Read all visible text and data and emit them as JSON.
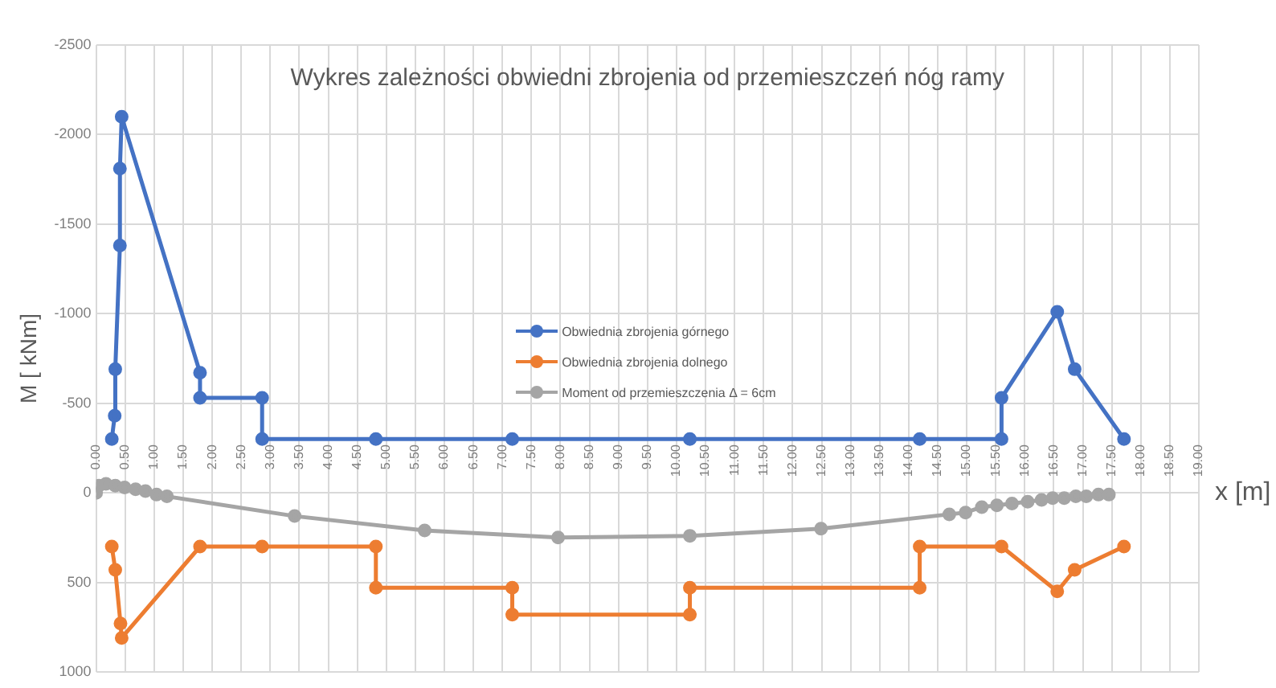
{
  "chart_data": {
    "type": "line",
    "title": "Wykres zależności obwiedni zbrojenia od przemieszczeń nóg ramy",
    "xlabel": "x [m]",
    "ylabel": "M [ kNm]",
    "series": [
      {
        "name": "Obwiednia zbrojenia górnego",
        "color": "#4472c4",
        "x": [
          0.27,
          0.32,
          0.33,
          0.41,
          0.41,
          0.44,
          1.79,
          1.79,
          2.86,
          2.86,
          4.82,
          7.17,
          10.23,
          14.19,
          15.6,
          15.6,
          16.56,
          16.86,
          17.71
        ],
        "values": [
          -300,
          -430,
          -690,
          -1380,
          -1810,
          -2100,
          -670,
          -530,
          -530,
          -300,
          -300,
          -300,
          -300,
          -300,
          -300,
          -530,
          -1010,
          -690,
          -300
        ]
      },
      {
        "name": "Obwiednia zbrojenia dolnego",
        "color": "#ed7d31",
        "x": [
          0.27,
          0.33,
          0.42,
          0.44,
          1.79,
          2.86,
          4.82,
          4.82,
          7.17,
          7.17,
          10.23,
          10.23,
          14.19,
          14.19,
          15.6,
          16.56,
          16.86,
          17.71
        ],
        "values": [
          300,
          430,
          730,
          810,
          300,
          300,
          300,
          530,
          530,
          680,
          680,
          530,
          530,
          300,
          300,
          550,
          430,
          300
        ]
      },
      {
        "name": "Moment od przemieszczenia Δ = 6cm",
        "color": "#a5a5a5",
        "x": [
          0,
          0.05,
          0.17,
          0.33,
          0.49,
          0.68,
          0.85,
          1.04,
          1.22,
          3.42,
          5.66,
          7.96,
          10.23,
          12.49,
          14.7,
          14.98,
          15.26,
          15.52,
          15.78,
          16.05,
          16.29,
          16.48,
          16.68,
          16.88,
          17.06,
          17.27,
          17.45
        ],
        "values": [
          0,
          -40,
          -50,
          -40,
          -30,
          -20,
          -10,
          10,
          20,
          130,
          210,
          250,
          240,
          200,
          120,
          110,
          80,
          70,
          60,
          50,
          40,
          30,
          30,
          20,
          20,
          10,
          10
        ]
      }
    ],
    "xlim": [
      0,
      19
    ],
    "xticks": [
      {
        "value": 0,
        "label": "0.00"
      },
      {
        "value": 0.5,
        "label": "0.50"
      },
      {
        "value": 1,
        "label": "1.00"
      },
      {
        "value": 1.5,
        "label": "1.50"
      },
      {
        "value": 2,
        "label": "2.00"
      },
      {
        "value": 2.5,
        "label": "2.50"
      },
      {
        "value": 3,
        "label": "3.00"
      },
      {
        "value": 3.5,
        "label": "3.50"
      },
      {
        "value": 4,
        "label": "4.00"
      },
      {
        "value": 4.5,
        "label": "4.50"
      },
      {
        "value": 5,
        "label": "5.00"
      },
      {
        "value": 5.5,
        "label": "5.50"
      },
      {
        "value": 6,
        "label": "6.00"
      },
      {
        "value": 6.5,
        "label": "6.50"
      },
      {
        "value": 7,
        "label": "7.00"
      },
      {
        "value": 7.5,
        "label": "7.50"
      },
      {
        "value": 8,
        "label": "8.00"
      },
      {
        "value": 8.5,
        "label": "8.50"
      },
      {
        "value": 9,
        "label": "9.00"
      },
      {
        "value": 9.5,
        "label": "9.50"
      },
      {
        "value": 10,
        "label": "10.00"
      },
      {
        "value": 10.5,
        "label": "10.50"
      },
      {
        "value": 11,
        "label": "11.00"
      },
      {
        "value": 11.5,
        "label": "11.50"
      },
      {
        "value": 12,
        "label": "12.00"
      },
      {
        "value": 12.5,
        "label": "12.50"
      },
      {
        "value": 13,
        "label": "13.00"
      },
      {
        "value": 13.5,
        "label": "13.50"
      },
      {
        "value": 14,
        "label": "14.00"
      },
      {
        "value": 14.5,
        "label": "14.50"
      },
      {
        "value": 15,
        "label": "15.00"
      },
      {
        "value": 15.5,
        "label": "15.50"
      },
      {
        "value": 16,
        "label": "16.00"
      },
      {
        "value": 16.5,
        "label": "16.50"
      },
      {
        "value": 17,
        "label": "17.00"
      },
      {
        "value": 17.5,
        "label": "17.50"
      },
      {
        "value": 18,
        "label": "18.00"
      },
      {
        "value": 18.5,
        "label": "18.50"
      },
      {
        "value": 19,
        "label": "19.00"
      }
    ],
    "ylim": [
      1000,
      -2500
    ],
    "yticks": [
      -2500,
      -2000,
      -1500,
      -1000,
      -500,
      0,
      500,
      1000
    ],
    "grid": true,
    "legend": "center",
    "marker": "circle",
    "line_style": "solid"
  }
}
